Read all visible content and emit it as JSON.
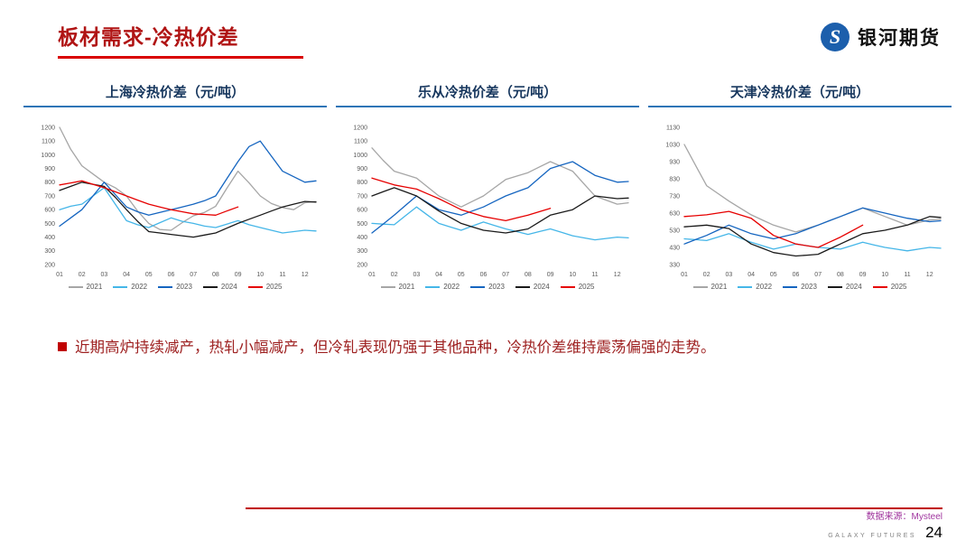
{
  "slide": {
    "title": "板材需求-冷热价差",
    "logo_text": "银河期货",
    "bullet": "近期高炉持续减产，热轧小幅减产，但冷轧表现仍强于其他品种，冷热价差维持震荡偏强的走势。",
    "footer": {
      "source": "数据来源：Mysteel",
      "brand": "GALAXY FUTURES",
      "page": "24"
    },
    "colors": {
      "accent_red": "#C00000",
      "chart_title_blue": "#17375E",
      "logo_blue": "#1C5FAC"
    }
  },
  "chart_data": [
    {
      "type": "line",
      "title": "上海冷热价差（元/吨）",
      "xlabel": "",
      "ylabel": "",
      "ylim": [
        200,
        1200
      ],
      "yticks": [
        200,
        300,
        400,
        500,
        600,
        700,
        800,
        900,
        1000,
        1100,
        1200
      ],
      "xticks": [
        "01",
        "02",
        "03",
        "04",
        "05",
        "06",
        "07",
        "08",
        "09",
        "10",
        "11",
        "12"
      ],
      "grid": false,
      "legend_position": "bottom",
      "series": [
        {
          "name": "2021",
          "color": "#a6a6a6",
          "values": [
            1200,
            1040,
            920,
            860,
            800,
            760,
            700,
            590,
            500,
            455,
            450,
            505,
            555,
            580,
            625,
            755,
            880,
            795,
            700,
            645,
            615,
            600,
            650,
            660
          ]
        },
        {
          "name": "2022",
          "color": "#45b6e8",
          "values": [
            600,
            625,
            640,
            700,
            760,
            640,
            520,
            490,
            470,
            505,
            540,
            515,
            500,
            480,
            470,
            495,
            520,
            490,
            470,
            450,
            430,
            440,
            450,
            445
          ]
        },
        {
          "name": "2023",
          "color": "#1565c0",
          "values": [
            480,
            540,
            600,
            700,
            800,
            710,
            620,
            585,
            560,
            580,
            600,
            620,
            640,
            665,
            700,
            825,
            950,
            1060,
            1100,
            990,
            880,
            840,
            800,
            810
          ]
        },
        {
          "name": "2024",
          "color": "#1a1a1a",
          "values": [
            740,
            770,
            800,
            785,
            770,
            690,
            600,
            515,
            440,
            430,
            420,
            410,
            400,
            415,
            430,
            465,
            500,
            530,
            560,
            590,
            620,
            640,
            660,
            655
          ]
        },
        {
          "name": "2025",
          "color": "#e60000",
          "values": [
            780,
            795,
            810,
            785,
            760,
            730,
            700,
            670,
            640,
            620,
            600,
            585,
            570,
            565,
            560,
            590,
            620
          ]
        }
      ]
    },
    {
      "type": "line",
      "title": "乐从冷热价差（元/吨）",
      "xlabel": "",
      "ylabel": "",
      "ylim": [
        200,
        1200
      ],
      "yticks": [
        200,
        300,
        400,
        500,
        600,
        700,
        800,
        900,
        1000,
        1100,
        1200
      ],
      "xticks": [
        "01",
        "02",
        "03",
        "04",
        "05",
        "06",
        "07",
        "08",
        "09",
        "10",
        "11",
        "12"
      ],
      "grid": false,
      "legend_position": "bottom",
      "series": [
        {
          "name": "2021",
          "color": "#a6a6a6",
          "values": [
            1050,
            960,
            880,
            855,
            830,
            765,
            700,
            660,
            620,
            660,
            700,
            760,
            820,
            845,
            870,
            910,
            950,
            915,
            880,
            790,
            700,
            670,
            640,
            650
          ]
        },
        {
          "name": "2022",
          "color": "#45b6e8",
          "values": [
            500,
            495,
            490,
            555,
            620,
            560,
            500,
            475,
            450,
            480,
            510,
            485,
            460,
            440,
            420,
            440,
            460,
            435,
            410,
            395,
            380,
            390,
            400,
            395
          ]
        },
        {
          "name": "2023",
          "color": "#1565c0",
          "values": [
            430,
            495,
            560,
            630,
            700,
            650,
            600,
            580,
            560,
            590,
            620,
            660,
            700,
            730,
            760,
            830,
            900,
            925,
            950,
            900,
            850,
            825,
            800,
            805
          ]
        },
        {
          "name": "2024",
          "color": "#1a1a1a",
          "values": [
            700,
            730,
            760,
            730,
            700,
            645,
            590,
            545,
            500,
            475,
            450,
            440,
            430,
            445,
            460,
            510,
            560,
            580,
            600,
            650,
            700,
            690,
            680,
            685
          ]
        },
        {
          "name": "2025",
          "color": "#e60000",
          "values": [
            830,
            805,
            780,
            765,
            750,
            715,
            680,
            640,
            600,
            575,
            550,
            535,
            520,
            540,
            560,
            585,
            610
          ]
        }
      ]
    },
    {
      "type": "line",
      "title": "天津冷热价差（元/吨）",
      "xlabel": "",
      "ylabel": "",
      "ylim": [
        330,
        1130
      ],
      "yticks": [
        330,
        430,
        530,
        630,
        730,
        830,
        930,
        1030,
        1130
      ],
      "xticks": [
        "01",
        "02",
        "03",
        "04",
        "05",
        "06",
        "07",
        "08",
        "09",
        "10",
        "11",
        "12"
      ],
      "grid": false,
      "legend_position": "bottom",
      "series": [
        {
          "name": "2021",
          "color": "#a6a6a6",
          "values": [
            1030,
            910,
            790,
            745,
            700,
            660,
            620,
            590,
            560,
            540,
            520,
            540,
            560,
            585,
            610,
            635,
            660,
            635,
            610,
            585,
            560,
            575,
            590,
            595
          ]
        },
        {
          "name": "2022",
          "color": "#45b6e8",
          "values": [
            480,
            475,
            470,
            490,
            510,
            485,
            460,
            440,
            420,
            435,
            450,
            440,
            430,
            425,
            420,
            440,
            460,
            445,
            430,
            420,
            410,
            420,
            430,
            425
          ]
        },
        {
          "name": "2023",
          "color": "#1565c0",
          "values": [
            450,
            475,
            500,
            530,
            560,
            535,
            510,
            495,
            480,
            495,
            510,
            535,
            560,
            585,
            610,
            635,
            660,
            645,
            630,
            615,
            600,
            590,
            580,
            585
          ]
        },
        {
          "name": "2024",
          "color": "#1a1a1a",
          "values": [
            550,
            555,
            560,
            550,
            540,
            495,
            450,
            425,
            400,
            390,
            380,
            385,
            390,
            420,
            450,
            480,
            510,
            520,
            530,
            545,
            560,
            585,
            610,
            605
          ]
        },
        {
          "name": "2025",
          "color": "#e60000",
          "values": [
            610,
            615,
            620,
            630,
            640,
            620,
            600,
            550,
            500,
            475,
            450,
            440,
            430,
            460,
            490,
            525,
            560
          ]
        }
      ]
    }
  ]
}
